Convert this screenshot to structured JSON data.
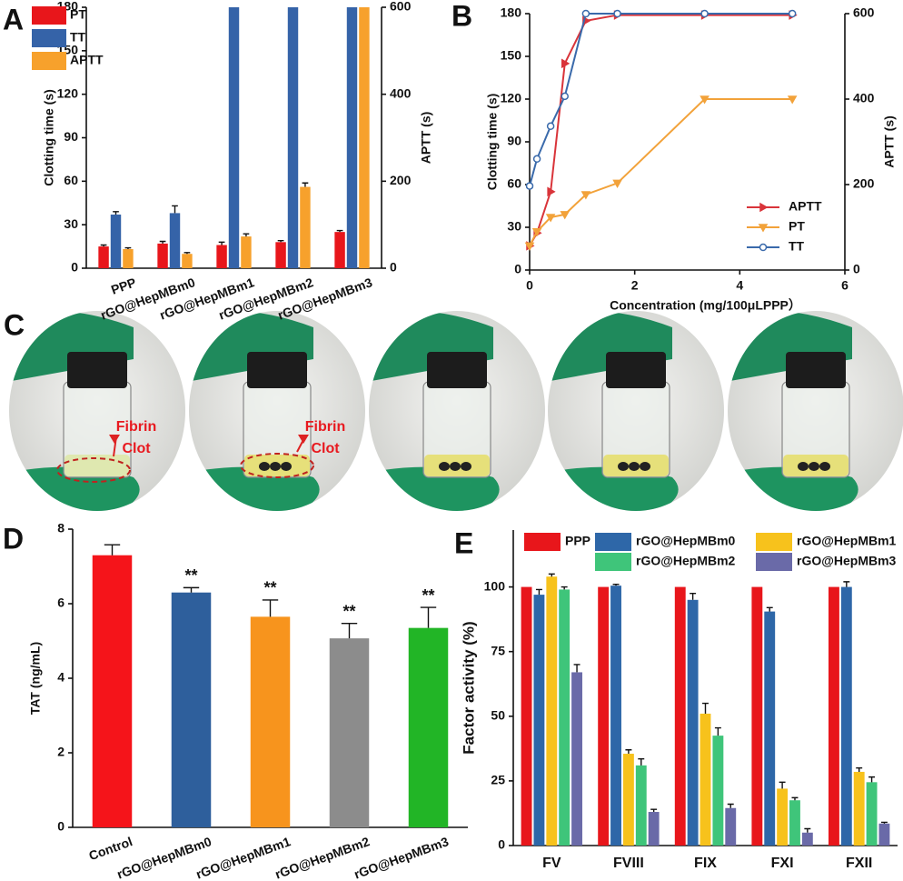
{
  "chart_data": [
    {
      "panel": "A",
      "type": "bar",
      "ylabel": "Clotting time (s)",
      "y2label": "APTT (s)",
      "categories": [
        "PPP",
        "rGO@HepMBm0",
        "rGO@HepMBm1",
        "rGO@HepMBm2",
        "rGO@HepMBm3"
      ],
      "series": [
        {
          "name": "PT",
          "color": "#e8161b",
          "values": [
            15,
            17,
            16,
            18,
            25
          ],
          "errors": [
            1,
            1.5,
            2,
            1,
            1
          ]
        },
        {
          "name": "TT",
          "color": "#3563a8",
          "values": [
            37,
            38,
            180,
            180,
            180
          ],
          "errors": [
            2,
            5,
            null,
            null,
            null
          ]
        },
        {
          "name": "APTT",
          "color": "#f7a12c",
          "axis": "y2",
          "values": [
            44,
            33,
            73,
            187,
            600
          ],
          "errors": [
            3,
            3,
            6,
            9,
            null
          ]
        }
      ],
      "ylim": [
        0,
        180
      ],
      "yticks": [
        0,
        30,
        60,
        90,
        120,
        150,
        180
      ],
      "y2lim": [
        0,
        600
      ],
      "y2ticks": [
        0,
        200,
        400,
        600
      ]
    },
    {
      "panel": "B",
      "type": "line",
      "xlabel": "Concentration (mg/100μLPPP）",
      "ylabel": "Clotting time (s)",
      "y2label": "APTT (s)",
      "x": [
        0,
        0.14,
        0.4,
        0.67,
        1.07,
        1.67,
        3.33,
        5
      ],
      "series": [
        {
          "name": "APTT",
          "color": "#d9343a",
          "marker": "arrow",
          "values": [
            17,
            26,
            55,
            145,
            175,
            179,
            179,
            179
          ]
        },
        {
          "name": "PT",
          "color": "#f2a23a",
          "marker": "triangle",
          "values": [
            17,
            27,
            37,
            39,
            53,
            61,
            120,
            120
          ]
        },
        {
          "name": "TT",
          "color": "#3a6aab",
          "marker": "circle",
          "values": [
            59,
            78,
            101,
            122,
            180,
            180,
            180,
            180
          ]
        }
      ],
      "xlim": [
        0,
        6
      ],
      "xticks": [
        0,
        2,
        4,
        6
      ],
      "ylim": [
        0,
        180
      ],
      "yticks": [
        0,
        30,
        60,
        90,
        120,
        150,
        180
      ],
      "y2lim": [
        0,
        600
      ],
      "y2ticks": [
        0,
        200,
        400,
        600
      ]
    },
    {
      "panel": "D",
      "type": "bar",
      "ylabel": "TAT (ng/mL)",
      "categories": [
        "Control",
        "rGO@HepMBm0",
        "rGO@HepMBm1",
        "rGO@HepMBm2",
        "rGO@HepMBm3"
      ],
      "values": [
        7.3,
        6.3,
        5.65,
        5.07,
        5.35
      ],
      "errors": [
        0.28,
        0.13,
        0.45,
        0.4,
        0.55
      ],
      "colors": [
        "#f5141a",
        "#2e5f9c",
        "#f7941d",
        "#8c8c8c",
        "#22b526"
      ],
      "annotations": [
        null,
        "**",
        "**",
        "**",
        "**"
      ],
      "ylim": [
        0,
        8
      ],
      "yticks": [
        0,
        2,
        4,
        6,
        8
      ]
    },
    {
      "panel": "E",
      "type": "bar",
      "ylabel": "Factor activity (%)",
      "categories": [
        "FV",
        "FVIII",
        "FIX",
        "FXI",
        "FXII"
      ],
      "series": [
        {
          "name": "PPP",
          "color": "#e8161b",
          "values": [
            100,
            100,
            100,
            100,
            100
          ]
        },
        {
          "name": "rGO@HepMBm0",
          "color": "#2e67a8",
          "values": [
            97,
            100.5,
            95,
            90.5,
            100
          ],
          "errors": [
            2,
            0.5,
            2.5,
            1.5,
            2
          ]
        },
        {
          "name": "rGO@HepMBm1",
          "color": "#f7c21c",
          "values": [
            104,
            35.5,
            51,
            22,
            28.5
          ],
          "errors": [
            1,
            1.5,
            4,
            2.5,
            1.5
          ]
        },
        {
          "name": "rGO@HepMBm2",
          "color": "#3fc57a",
          "values": [
            99,
            31,
            42.5,
            17.5,
            24.5
          ],
          "errors": [
            1,
            2.5,
            3,
            1,
            2
          ]
        },
        {
          "name": "rGO@HepMBm3",
          "color": "#6a6aa8",
          "values": [
            67,
            13,
            14.5,
            5,
            8.5
          ],
          "errors": [
            3,
            1,
            1.5,
            1.5,
            0.5
          ]
        }
      ],
      "ylim": [
        0,
        122
      ],
      "yticks": [
        0,
        25,
        50,
        75,
        100
      ]
    }
  ],
  "panel_c": {
    "letter": "C",
    "annotations": [
      [
        "Fibrin",
        "Clot"
      ],
      [
        "Fibrin",
        "Clot"
      ]
    ]
  }
}
